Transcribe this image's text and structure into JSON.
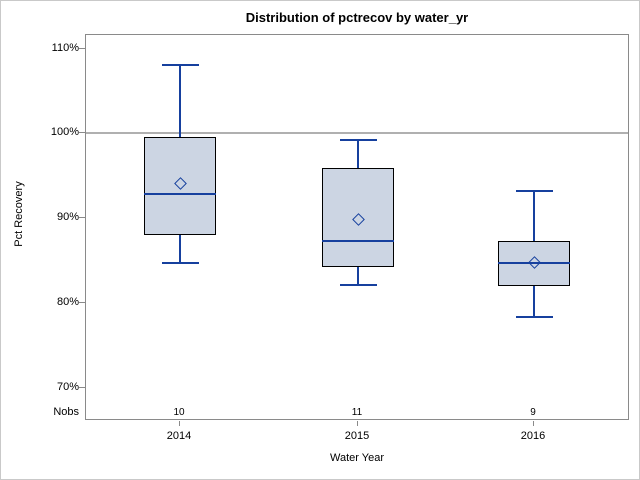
{
  "title": "Distribution of pctrecov by water_yr",
  "chart_data": {
    "type": "boxplot",
    "title": "Distribution of pctrecov by water_yr",
    "xlabel": "Water Year",
    "ylabel": "Pct Recovery",
    "categories": [
      "2014",
      "2015",
      "2016"
    ],
    "nobs_label": "Nobs",
    "nobs": [
      "10",
      "11",
      "9"
    ],
    "y_ticks": [
      "110%",
      "100%",
      "90%",
      "80%",
      "70%"
    ],
    "y_tick_values": [
      110,
      100,
      90,
      80,
      70
    ],
    "ylim": [
      66.1,
      111.6
    ],
    "reference_line": 100,
    "grid": false,
    "legend": "none",
    "series": [
      {
        "category": "2014",
        "n": 10,
        "whisker_low": 84.7,
        "q1": 88.0,
        "median": 92.8,
        "q3": 99.6,
        "whisker_high": 108.1,
        "mean": 94.1
      },
      {
        "category": "2015",
        "n": 11,
        "whisker_low": 82.1,
        "q1": 84.2,
        "median": 87.3,
        "q3": 95.9,
        "whisker_high": 99.2,
        "mean": 89.8
      },
      {
        "category": "2016",
        "n": 9,
        "whisker_low": 78.3,
        "q1": 82.0,
        "median": 84.7,
        "q3": 87.3,
        "whisker_high": 93.2,
        "mean": 84.8
      }
    ],
    "colors": {
      "box_fill": "#ccd5e3",
      "box_border": "#000000",
      "line_blue": "#16409e",
      "reference_line": "#b0b0b0",
      "axis_border": "#8a8a8a",
      "text": "#000000",
      "figure_border": "#c9c9c9"
    }
  }
}
